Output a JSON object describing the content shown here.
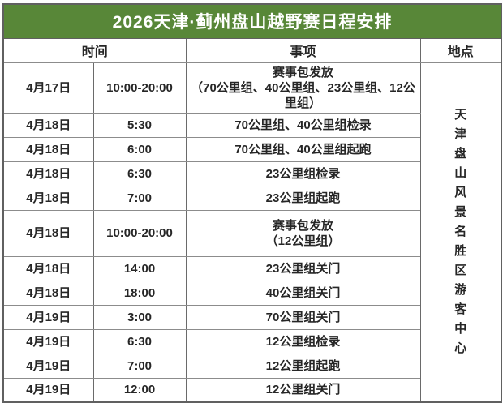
{
  "title": "2026天津·蓟州盘山越野赛日程安排",
  "colors": {
    "header_bg": "#588738",
    "header_text": "#ffffff",
    "border_outer": "#606060",
    "border_inner": "#8c8c8c",
    "body_text": "#262626"
  },
  "table": {
    "headers": {
      "time": "时间",
      "event": "事项",
      "location": "地点"
    },
    "rows": [
      {
        "date": "4月17日",
        "time": "10:00-20:00",
        "event": "赛事包发放\n（70公里组、40公里组、23公里组、12公里组）"
      },
      {
        "date": "4月18日",
        "time": "5:30",
        "event": "70公里组、40公里组检录"
      },
      {
        "date": "4月18日",
        "time": "6:00",
        "event": "70公里组、40公里组起跑"
      },
      {
        "date": "4月18日",
        "time": "6:30",
        "event": "23公里组检录"
      },
      {
        "date": "4月18日",
        "time": "7:00",
        "event": "23公里组起跑"
      },
      {
        "date": "4月18日",
        "time": "10:00-20:00",
        "event": "赛事包发放\n（12公里组）"
      },
      {
        "date": "4月18日",
        "time": "14:00",
        "event": "23公里组关门"
      },
      {
        "date": "4月18日",
        "time": "18:00",
        "event": "40公里组关门"
      },
      {
        "date": "4月19日",
        "time": "3:00",
        "event": "70公里组关门"
      },
      {
        "date": "4月19日",
        "time": "6:30",
        "event": "12公里组检录"
      },
      {
        "date": "4月19日",
        "time": "7:00",
        "event": "12公里组起跑"
      },
      {
        "date": "4月19日",
        "time": "12:00",
        "event": "12公里组关门"
      }
    ],
    "location": "天津盘山风景名胜区游客中心"
  }
}
